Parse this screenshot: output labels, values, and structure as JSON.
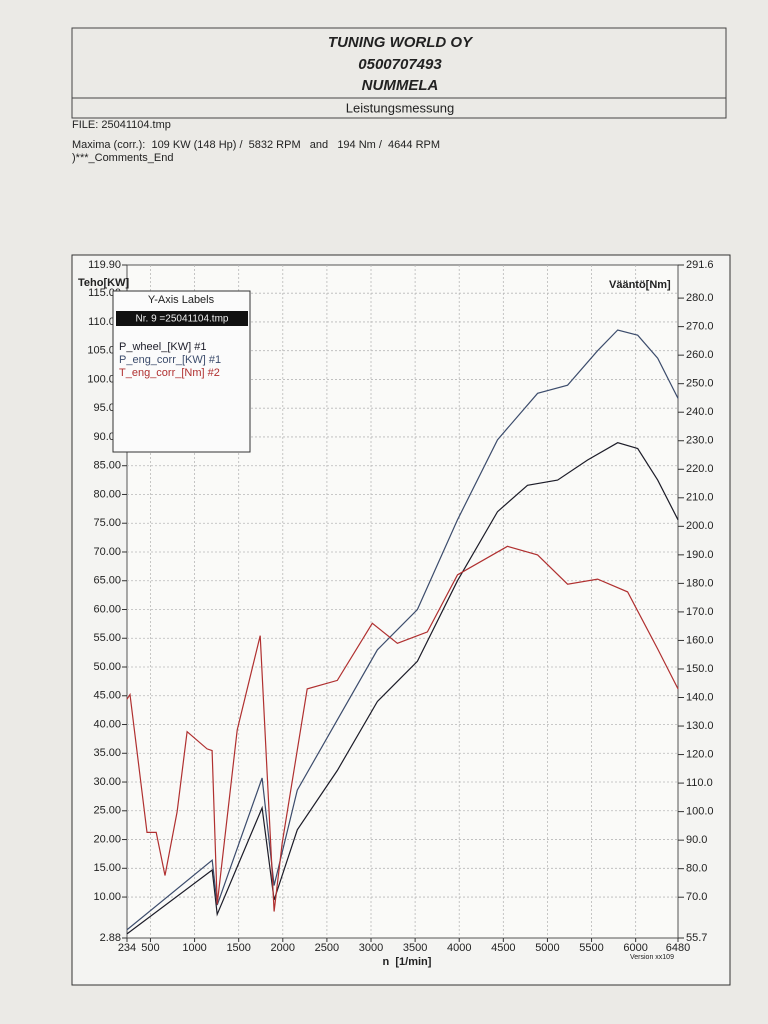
{
  "header": {
    "company": "TUNING WORLD OY",
    "phone": "0500707493",
    "city": "NUMMELA",
    "subtitle": "Leistungsmessung"
  },
  "info": {
    "file": "FILE: 25041104.tmp",
    "maxima": "Maxima (corr.):  109 KW (148 Hp) /  5832 RPM   and   194 Nm /  4644 RPM",
    "comments": ")***_Comments_End"
  },
  "chart_data": {
    "type": "line",
    "y_label": "Teho[KW]",
    "y2_label": "Vääntö[Nm]",
    "x_label": "n  [1/min]",
    "legend_title": "Y-Axis Labels",
    "legend_file": "Nr. 9 =25041104.tmp",
    "version": "Version xx109",
    "xlim": [
      234,
      6480
    ],
    "xticks": [
      234,
      500,
      1000,
      1500,
      2000,
      2500,
      3000,
      3500,
      4000,
      4500,
      5000,
      5500,
      6000,
      6480
    ],
    "ylim": [
      2.88,
      119.9
    ],
    "yticks": [
      2.88,
      {
        "value": 10,
        "label": "10.00"
      },
      {
        "value": 15,
        "label": "15.00"
      },
      {
        "value": 20,
        "label": "20.00"
      },
      {
        "value": 25,
        "label": "25.00"
      },
      {
        "value": 30,
        "label": "30.00"
      },
      {
        "value": 35,
        "label": "35.00"
      },
      {
        "value": 40,
        "label": "40.00"
      },
      {
        "value": 45,
        "label": "45.00"
      },
      {
        "value": 50,
        "label": "50.00"
      },
      {
        "value": 55,
        "label": "55.00"
      },
      {
        "value": 60,
        "label": "60.00"
      },
      {
        "value": 65,
        "label": "65.00"
      },
      {
        "value": 70,
        "label": "70.00"
      },
      {
        "value": 75,
        "label": "75.00"
      },
      {
        "value": 80,
        "label": "80.00"
      },
      {
        "value": 85,
        "label": "85.00"
      },
      {
        "value": 90,
        "label": "90.00"
      },
      {
        "value": 95,
        "label": "95.00"
      },
      {
        "value": 100,
        "label": "100.00"
      },
      {
        "value": 105,
        "label": "105.00"
      },
      {
        "value": 110,
        "label": "110.00"
      },
      {
        "value": 115,
        "label": "115.00"
      },
      {
        "value": 119.9,
        "label": "119.90"
      }
    ],
    "y2lim": [
      55.7,
      291.6
    ],
    "y2ticks": [
      55.7,
      {
        "value": 70,
        "label": "70.0"
      },
      {
        "value": 80,
        "label": "80.0"
      },
      {
        "value": 90,
        "label": "90.0"
      },
      {
        "value": 100,
        "label": "100.0"
      },
      {
        "value": 110,
        "label": "110.0"
      },
      {
        "value": 120,
        "label": "120.0"
      },
      {
        "value": 130,
        "label": "130.0"
      },
      {
        "value": 140,
        "label": "140.0"
      },
      {
        "value": 150,
        "label": "150.0"
      },
      {
        "value": 160,
        "label": "160.0"
      },
      {
        "value": 170,
        "label": "170.0"
      },
      {
        "value": 180,
        "label": "180.0"
      },
      {
        "value": 190,
        "label": "190.0"
      },
      {
        "value": 200,
        "label": "200.0"
      },
      {
        "value": 210,
        "label": "210.0"
      },
      {
        "value": 220,
        "label": "220.0"
      },
      {
        "value": 230,
        "label": "230.0"
      },
      {
        "value": 240,
        "label": "240.0"
      },
      {
        "value": 250,
        "label": "250.0"
      },
      {
        "value": 260,
        "label": "260.0"
      },
      {
        "value": 270,
        "label": "270.0"
      },
      {
        "value": 280,
        "label": "280.0"
      },
      291.6
    ],
    "grid": true,
    "series": [
      {
        "name": "P_wheel_[KW] #1",
        "color": "#1c1c28",
        "x": [
          234,
          1200,
          1256,
          1766,
          1902,
          2164,
          2618,
          3072,
          3526,
          3980,
          4434,
          4774,
          5115,
          5455,
          5796,
          6023,
          6250,
          6480
        ],
        "values": [
          3.6,
          14.7,
          7,
          25.5,
          9.5,
          21.7,
          32,
          44,
          51,
          65,
          77,
          81.6,
          82.5,
          86,
          89,
          88,
          82.5,
          75.6
        ]
      },
      {
        "name": "P_eng_corr_[KW] #1",
        "color": "#3c4c6c",
        "x": [
          234,
          1200,
          1256,
          1766,
          1902,
          2164,
          2618,
          3072,
          3526,
          3980,
          4434,
          4888,
          5228,
          5569,
          5796,
          6023,
          6250,
          6480
        ],
        "values": [
          4.3,
          16.4,
          8.6,
          30.7,
          12,
          28.6,
          40.8,
          53,
          60,
          75.6,
          89.5,
          97.6,
          99,
          105,
          108.6,
          107.7,
          103.7,
          96.7
        ]
      },
      {
        "name": "T_eng_corr_[Nm] #2",
        "color": "#b03030",
        "axis": "y2",
        "x": [
          234,
          268,
          461,
          565,
          665,
          802,
          915,
          1142,
          1199,
          1256,
          1483,
          1744,
          1902,
          1993,
          2277,
          2618,
          3015,
          3299,
          3639,
          3980,
          4547,
          4888,
          5228,
          5569,
          5909,
          6250,
          6480
        ],
        "values": [
          139.4,
          141,
          92.7,
          92.7,
          77.6,
          99.9,
          128,
          122,
          121.4,
          67.5,
          128.6,
          161.7,
          65,
          89,
          143,
          146,
          166,
          159,
          163,
          183,
          193,
          190,
          179.7,
          181.5,
          177,
          157,
          143
        ]
      }
    ]
  }
}
